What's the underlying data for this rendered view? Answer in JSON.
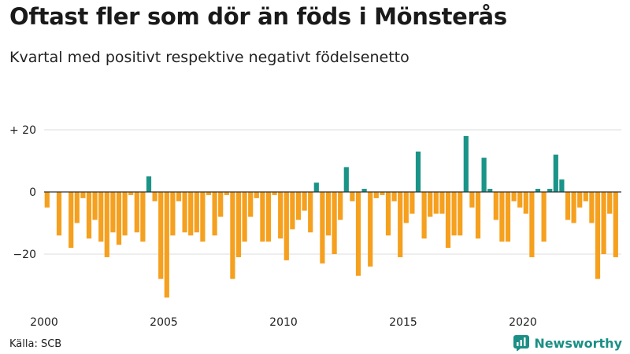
{
  "title": "Oftast fler som dör än föds i Mönsterås",
  "subtitle": "Kvartal med positivt respektive negativt födelsenetto",
  "source": "Källa: SCB",
  "brand": "Newsworthy",
  "colors": {
    "positive": "#1a9488",
    "negative": "#f5a01e",
    "grid": "#dedede",
    "axis": "#333333"
  },
  "chart_data": {
    "type": "bar",
    "title": "Oftast fler som dör än föds i Mönsterås",
    "subtitle": "Kvartal med positivt respektive negativt födelsenetto",
    "xlabel": "",
    "ylabel": "",
    "ylim": [
      -35,
      22
    ],
    "yticks": [
      {
        "value": 20,
        "label": "+ 20"
      },
      {
        "value": 0,
        "label": "0"
      },
      {
        "value": -20,
        "label": "−20"
      }
    ],
    "xticks": [
      {
        "index": 0,
        "label": "2000"
      },
      {
        "index": 20,
        "label": "2005"
      },
      {
        "index": 40,
        "label": "2010"
      },
      {
        "index": 60,
        "label": "2015"
      },
      {
        "index": 80,
        "label": "2020"
      }
    ],
    "start_year": 2000,
    "values": [
      -5,
      0,
      -14,
      0,
      -18,
      -10,
      -2,
      -15,
      -9,
      -16,
      -21,
      -13,
      -17,
      -14,
      -1,
      -13,
      -16,
      5,
      -3,
      -28,
      -34,
      -14,
      -3,
      -13,
      -14,
      -13,
      -16,
      -1,
      -14,
      -8,
      -1,
      -28,
      -21,
      -16,
      -8,
      -2,
      -16,
      -16,
      -1,
      -15,
      -22,
      -12,
      -9,
      -6,
      -13,
      3,
      -23,
      -14,
      -20,
      -9,
      8,
      -3,
      -27,
      1,
      -24,
      -2,
      -1,
      -14,
      -3,
      -21,
      -10,
      -7,
      13,
      -15,
      -8,
      -7,
      -7,
      -18,
      -14,
      -14,
      18,
      -5,
      -15,
      11,
      1,
      -9,
      -16,
      -16,
      -3,
      -5,
      -7,
      -21,
      1,
      -16,
      1,
      12,
      4,
      -9,
      -10,
      -5,
      -3,
      -10,
      -28,
      -20,
      -7,
      -21
    ]
  }
}
